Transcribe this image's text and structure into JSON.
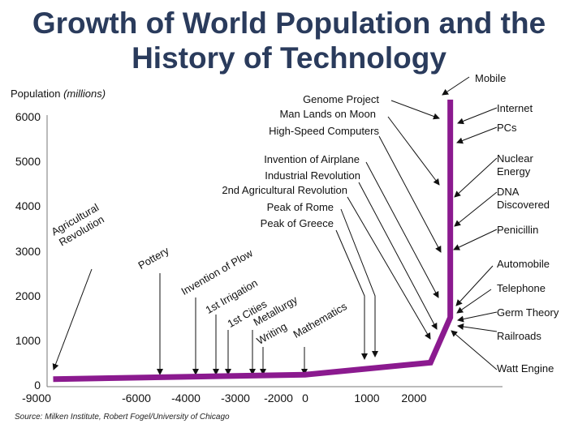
{
  "chart_data": {
    "type": "line",
    "title": "Growth of World Population and the",
    "title_line2": "History of Technology",
    "ylabel": "Population",
    "ylabel_unit": "(millions)",
    "xlabel": "",
    "ylim": [
      0,
      6500
    ],
    "yticks": [
      0,
      1000,
      2000,
      3000,
      4000,
      5000,
      6000
    ],
    "xticks": [
      -9000,
      -6000,
      -4000,
      -3000,
      -2000,
      0,
      1000,
      2000
    ],
    "x_scale": "non-linear",
    "series": [
      {
        "name": "World population",
        "color": "#8b1a8f",
        "x": [
          -8500,
          0,
          2350,
          2770,
          2770
        ],
        "y": [
          150,
          250,
          520,
          1530,
          6400
        ]
      }
    ],
    "annotations": [
      "Agricultural Revolution",
      "Pottery",
      "Invention of Plow",
      "1st Irrigation",
      "1st Cities",
      "Metallurgy",
      "Writing",
      "Mathematics",
      "Peak of Greece",
      "Peak of Rome",
      "2nd Agricultural Revolution",
      "Industrial Revolution",
      "Invention of Airplane",
      "High-Speed Computers",
      "Man Lands on Moon",
      "Genome Project",
      "Mobile",
      "Internet",
      "PCs",
      "Nuclear Energy",
      "DNA Discovered",
      "Penicillin",
      "Automobile",
      "Telephone",
      "Germ Theory",
      "Railroads",
      "Watt Engine"
    ],
    "source": "Source: Milken Institute, Robert Fogel/University of Chicago"
  }
}
